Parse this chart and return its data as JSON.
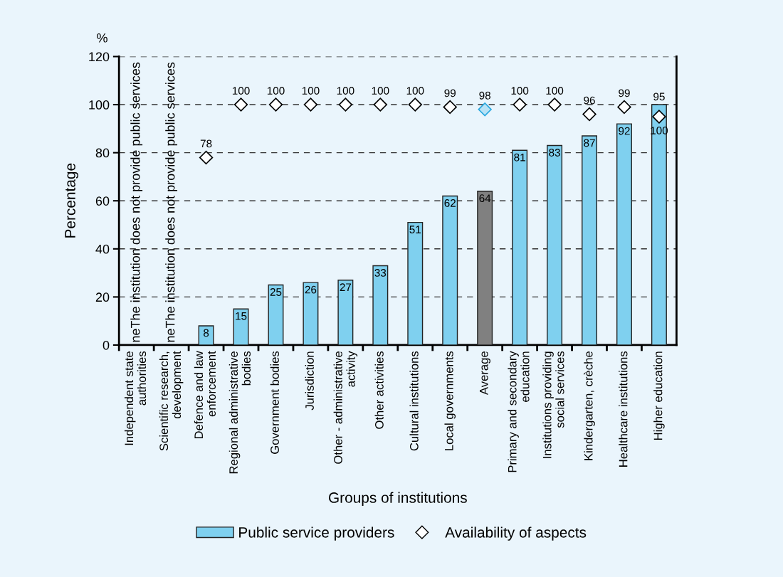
{
  "chart_data": {
    "type": "bar",
    "xlabel": "Groups of institutions",
    "ylabel": "Percentage",
    "categories": [
      "Independent state\nauthorities",
      "Scientific research,\ndevelopment",
      "Defence and law\nenforcement",
      "Regional administrative\nbodies",
      "Government bodies",
      "Jurisdiction",
      "Other - administrative\nactivity",
      "Other activities",
      "Cultural institutions",
      "Local governments",
      "Average",
      "Primary and secondary\neducation",
      "Institutions providing\nsocial services",
      "Kindergarten, crèche",
      "Healthcare institutions",
      "Higher education"
    ],
    "series": [
      {
        "name": "Public service providers",
        "color": "#7fd0ef",
        "colors": [
          "#7fd0ef",
          "#7fd0ef",
          "#7fd0ef",
          "#7fd0ef",
          "#7fd0ef",
          "#7fd0ef",
          "#7fd0ef",
          "#7fd0ef",
          "#7fd0ef",
          "#7fd0ef",
          "#808080",
          "#7fd0ef",
          "#7fd0ef",
          "#7fd0ef",
          "#7fd0ef",
          "#7fd0ef"
        ],
        "values": [
          null,
          null,
          8,
          15,
          25,
          26,
          27,
          33,
          51,
          62,
          64,
          81,
          83,
          87,
          92,
          100
        ]
      },
      {
        "name": "Availability of aspects",
        "type": "scatter",
        "marker": "diamond",
        "color": "#ffffff",
        "colors": [
          "#ffffff",
          "#ffffff",
          "#ffffff",
          "#ffffff",
          "#ffffff",
          "#ffffff",
          "#ffffff",
          "#ffffff",
          "#ffffff",
          "#ffffff",
          "#b8e2f5",
          "#ffffff",
          "#ffffff",
          "#ffffff",
          "#ffffff",
          "#ffffff"
        ],
        "values": [
          null,
          null,
          78,
          100,
          100,
          100,
          100,
          100,
          100,
          99,
          98,
          100,
          100,
          96,
          99,
          95
        ]
      }
    ],
    "annotations": [
      "%",
      "neThe institution does not provide public services",
      "neThe institution does not provide public services"
    ],
    "ylim": [
      0,
      120
    ],
    "yticks": [
      0,
      20,
      40,
      60,
      80,
      100,
      120
    ],
    "grid": "y",
    "legend": "bottom",
    "data_labels": true
  }
}
